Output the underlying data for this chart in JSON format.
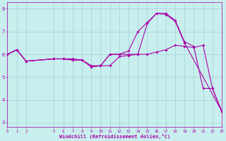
{
  "xlabel": "Windchill (Refroidissement éolien,°C)",
  "background_color": "#c8eeed",
  "grid_color": "#a8d8d8",
  "line_color": "#aa00aa",
  "axis_label_bg": "#6600aa",
  "line1_x": [
    0,
    1,
    2,
    5,
    6,
    7,
    8,
    9,
    10,
    11,
    12,
    13,
    14,
    15,
    16,
    17,
    18,
    19,
    20,
    21,
    22,
    23
  ],
  "line1_y": [
    6.0,
    6.2,
    5.7,
    5.8,
    5.8,
    5.8,
    5.75,
    5.5,
    5.5,
    5.5,
    5.9,
    5.95,
    6.0,
    6.0,
    6.1,
    6.2,
    6.4,
    6.35,
    6.3,
    6.4,
    4.5,
    3.5
  ],
  "line2_x": [
    0,
    1,
    2,
    5,
    6,
    7,
    8,
    9,
    10,
    11,
    12,
    13,
    14,
    15,
    16,
    17,
    18,
    19,
    20,
    21,
    22,
    23
  ],
  "line2_y": [
    6.0,
    6.2,
    5.7,
    5.8,
    5.8,
    5.75,
    5.75,
    5.45,
    5.5,
    6.0,
    6.0,
    6.15,
    7.0,
    7.4,
    7.8,
    7.8,
    7.5,
    6.55,
    6.35,
    4.5,
    4.5,
    3.5
  ],
  "line3_x": [
    0,
    1,
    2,
    5,
    6,
    7,
    8,
    9,
    10,
    11,
    12,
    13,
    14,
    15,
    16,
    17,
    18,
    19,
    23
  ],
  "line3_y": [
    6.0,
    6.2,
    5.7,
    5.8,
    5.8,
    5.75,
    5.75,
    5.45,
    5.5,
    6.0,
    6.0,
    6.0,
    6.0,
    7.35,
    7.8,
    7.75,
    7.45,
    6.5,
    3.5
  ],
  "xlim": [
    0,
    23
  ],
  "ylim": [
    2.8,
    8.3
  ],
  "yticks": [
    3,
    4,
    5,
    6,
    7,
    8
  ],
  "xticks": [
    0,
    1,
    2,
    5,
    6,
    7,
    8,
    9,
    10,
    11,
    12,
    13,
    14,
    15,
    16,
    17,
    18,
    19,
    20,
    21,
    22,
    23
  ],
  "tick_fontsize": 4.0,
  "label_fontsize": 5.0
}
